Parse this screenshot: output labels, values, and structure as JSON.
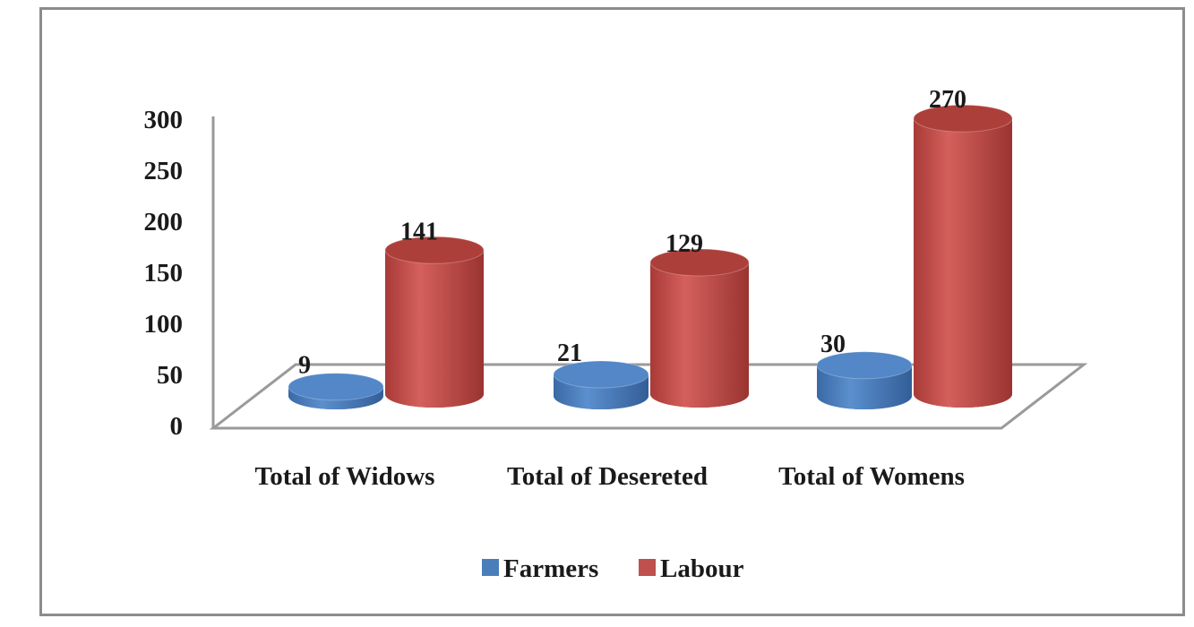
{
  "chart_data": {
    "type": "bar",
    "style": "3d-cylinder",
    "title": "",
    "xlabel": "",
    "ylabel": "",
    "categories": [
      "Total of Widows",
      "Total of Desereted",
      "Total of Womens"
    ],
    "series": [
      {
        "name": "Farmers",
        "values": [
          9,
          21,
          30
        ],
        "color": "#4a7ebb"
      },
      {
        "name": "Labour",
        "values": [
          141,
          129,
          270
        ],
        "color": "#c0504d"
      }
    ],
    "ylim": [
      0,
      300
    ],
    "yticks": [
      0,
      50,
      100,
      150,
      200,
      250,
      300
    ],
    "data_labels": true,
    "grid": false,
    "legend": "bottom"
  }
}
